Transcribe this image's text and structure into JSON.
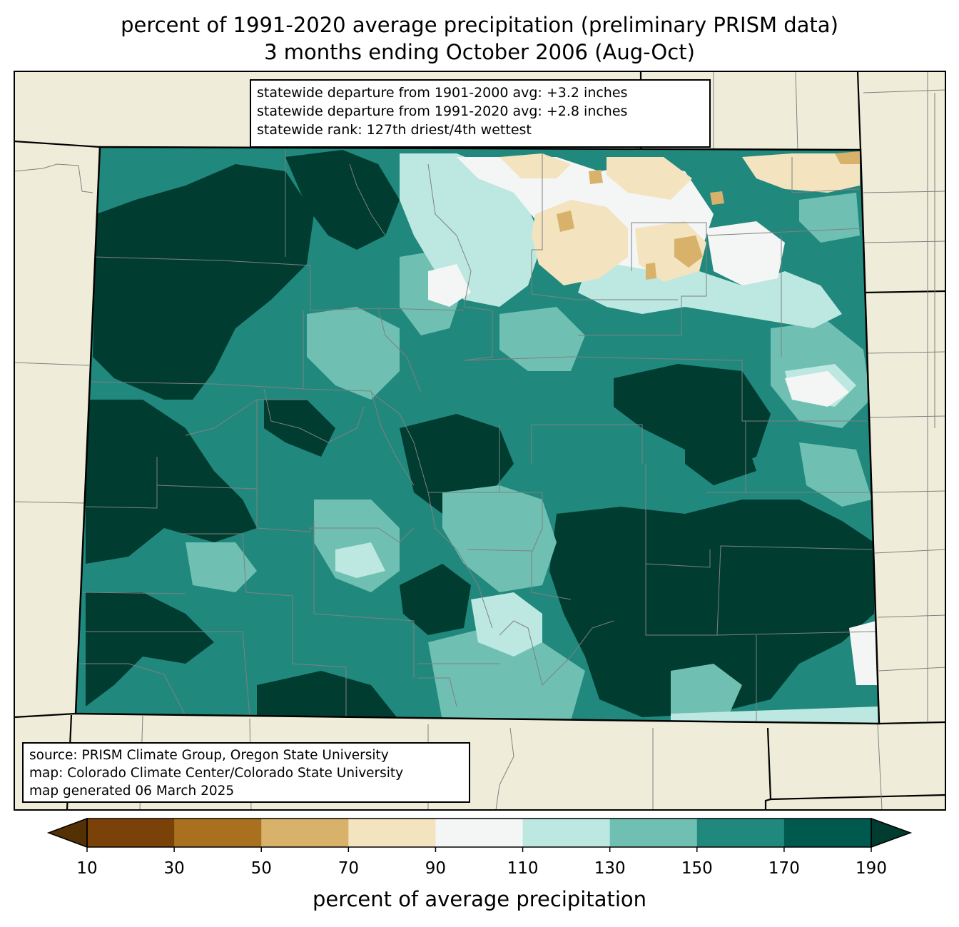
{
  "title": {
    "line1": "percent of 1991-2020 average precipitation (preliminary PRISM data)",
    "line2": "3 months ending October 2006 (Aug-Oct)"
  },
  "stats": {
    "line1": "statewide departure from 1901-2000 avg: +3.2 inches",
    "line2": "statewide departure from 1991-2020 avg: +2.8 inches",
    "line3": "statewide rank: 127th driest/4th wettest"
  },
  "source": {
    "line1": "source: PRISM Climate Group, Oregon State University",
    "line2": "map: Colorado Climate Center/Colorado State University",
    "line3": "map generated 06 March 2025"
  },
  "colorbar": {
    "label": "percent of average precipitation",
    "ticks": [
      "10",
      "30",
      "50",
      "70",
      "90",
      "110",
      "130",
      "150",
      "170",
      "190"
    ],
    "under_color": "#543005",
    "over_color": "#003c30",
    "colors": [
      "#7a4209",
      "#a9701f",
      "#d8b26a",
      "#f3e3be",
      "#f4f5f5",
      "#bde8e1",
      "#6fc0b2",
      "#21887e",
      "#00594f"
    ]
  },
  "map_colors": {
    "background": "#efedda",
    "state_line": "#000000",
    "county_line": "#808080"
  }
}
